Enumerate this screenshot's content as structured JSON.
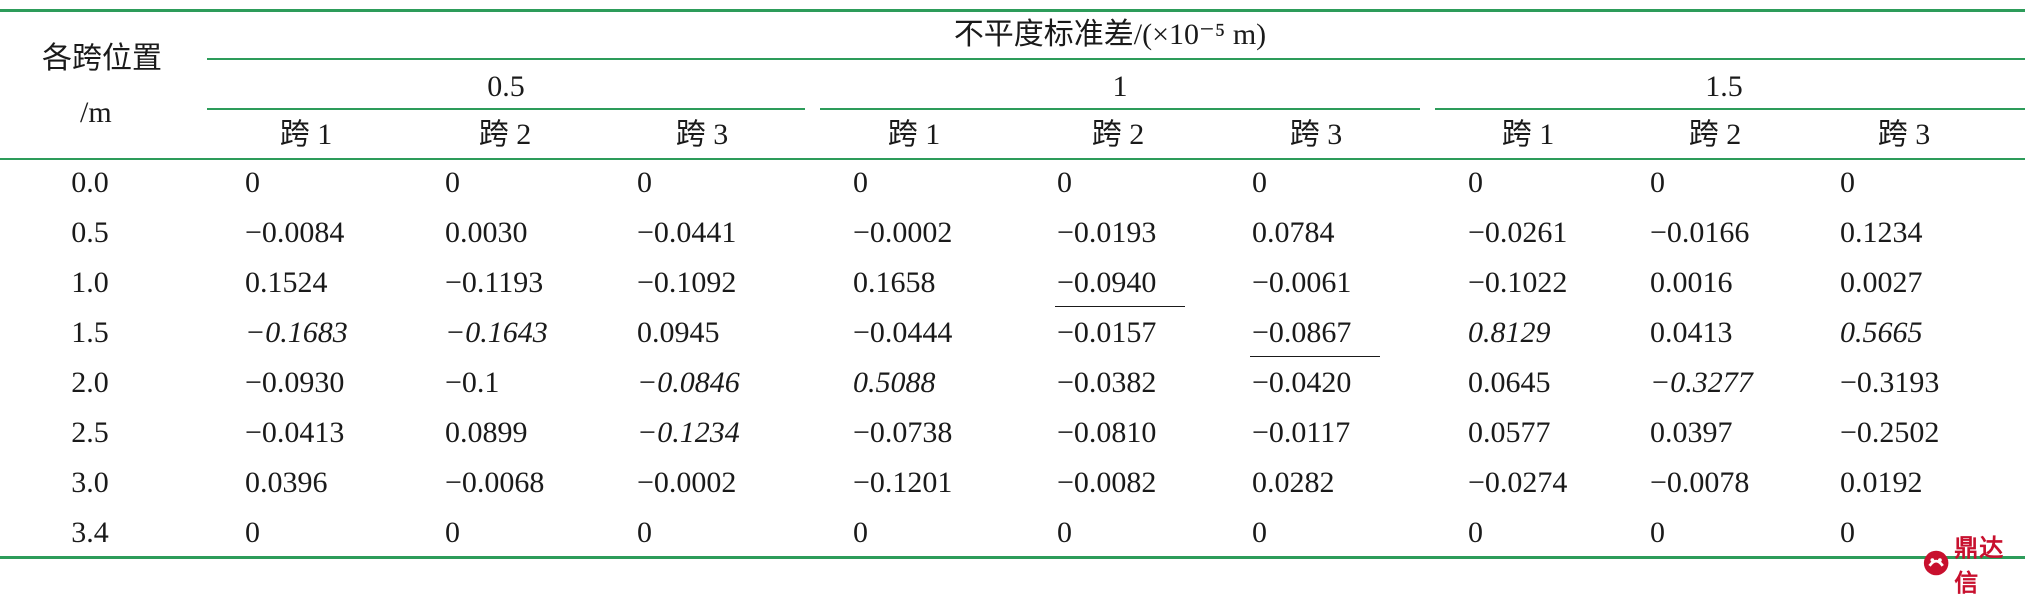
{
  "header": {
    "row_label_line1": "各跨位置",
    "row_label_line2": "/m",
    "group_title": "不平度标准差/(×10⁻⁵ m)",
    "groups": [
      "0.5",
      "1",
      "1.5"
    ],
    "spans": [
      "跨 1",
      "跨 2",
      "跨 3",
      "跨 1",
      "跨 2",
      "跨 3",
      "跨 1",
      "跨 2",
      "跨 3"
    ]
  },
  "rows": [
    {
      "pos": "0.0",
      "values": [
        "0",
        "0",
        "0",
        "0",
        "0",
        "0",
        "0",
        "0",
        "0"
      ]
    },
    {
      "pos": "0.5",
      "values": [
        "−0.0084",
        "0.0030",
        "−0.0441",
        "−0.0002",
        "−0.0193",
        "0.0784",
        "−0.0261",
        "−0.0166",
        "0.1234"
      ]
    },
    {
      "pos": "1.0",
      "values": [
        "0.1524",
        "−0.1193",
        "−0.1092",
        "0.1658",
        "−0.0940",
        "−0.0061",
        "−0.1022",
        "0.0016",
        "0.0027"
      ]
    },
    {
      "pos": "1.5",
      "values": [
        "−0.1683",
        "−0.1643",
        "0.0945",
        "−0.0444",
        "−0.0157",
        "−0.0867",
        "0.8129",
        "0.0413",
        "0.5665"
      ]
    },
    {
      "pos": "2.0",
      "values": [
        "−0.0930",
        "−0.1",
        "−0.0846",
        "0.5088",
        "−0.0382",
        "−0.0420",
        "0.0645",
        "−0.3277",
        "−0.3193"
      ]
    },
    {
      "pos": "2.5",
      "values": [
        "−0.0413",
        "0.0899",
        "−0.1234",
        "−0.0738",
        "−0.0810",
        "−0.0117",
        "0.0577",
        "0.0397",
        "−0.2502"
      ]
    },
    {
      "pos": "3.0",
      "values": [
        "0.0396",
        "−0.0068",
        "−0.0002",
        "−0.1201",
        "−0.0082",
        "0.0282",
        "−0.0274",
        "−0.0078",
        "0.0192"
      ]
    },
    {
      "pos": "3.4",
      "values": [
        "0",
        "0",
        "0",
        "0",
        "0",
        "0",
        "0",
        "0",
        "0"
      ]
    }
  ],
  "emphasis": {
    "italic_cells": [
      [
        3,
        0
      ],
      [
        3,
        1
      ],
      [
        4,
        2
      ],
      [
        5,
        2
      ],
      [
        3,
        6
      ],
      [
        3,
        8
      ],
      [
        4,
        3
      ],
      [
        4,
        7
      ]
    ],
    "underlined_cells": [
      [
        2,
        4
      ],
      [
        3,
        5
      ]
    ]
  },
  "watermark": {
    "text": "鼎达信",
    "icon": "logo-icon"
  },
  "colors": {
    "rules": "#2d9c5a",
    "text": "#1a1a1a",
    "watermark": "#c8102e"
  }
}
